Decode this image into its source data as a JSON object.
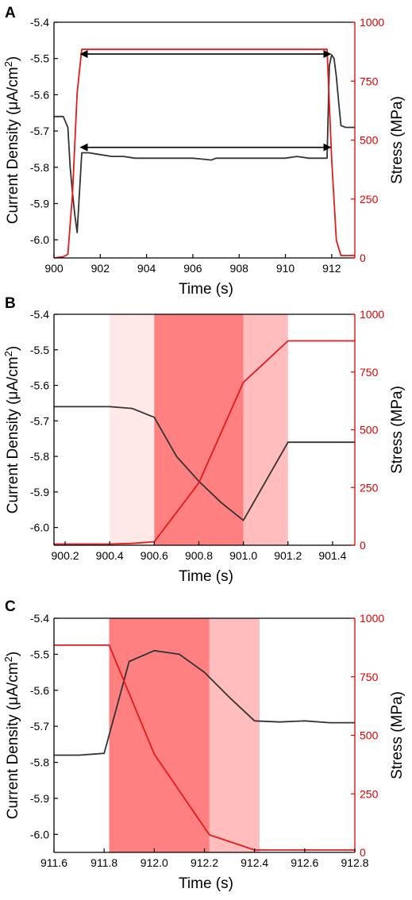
{
  "colors": {
    "current": "#333333",
    "stress": "#e8191a",
    "right_axis": "#e00000",
    "shade_light": "#ffe8e8",
    "shade_dark": "#ff8080",
    "shade_mid": "#ffbdbd"
  },
  "chart_data": [
    {
      "panel": "A",
      "type": "line",
      "xlabel": "Time (s)",
      "ylabel_left": "Current Density (μA/cm²)",
      "ylabel_right": "Stress (MPa)",
      "xlim": [
        900,
        913
      ],
      "ylim_left": [
        -6.05,
        -5.4
      ],
      "ylim_right": [
        0,
        1000
      ],
      "xticks": [
        900,
        902,
        904,
        906,
        908,
        910,
        912
      ],
      "xtick_labels": [
        "900",
        "902",
        "904",
        "906",
        "908",
        "910",
        "912"
      ],
      "yticks_left": [
        -6.0,
        -5.9,
        -5.8,
        -5.7,
        -5.6,
        -5.5,
        -5.4
      ],
      "ytick_labels_left": [
        "-6.0",
        "-5.9",
        "-5.8",
        "-5.7",
        "-5.6",
        "-5.5",
        "-5.4"
      ],
      "yticks_right": [
        0,
        250,
        500,
        750,
        1000
      ],
      "ytick_labels_right": [
        "0",
        "250",
        "500",
        "750",
        "1000"
      ],
      "series": [
        {
          "axis": "left",
          "color": "#333333",
          "x": [
            900,
            900.4,
            900.6,
            900.7,
            900.8,
            900.9,
            901.0,
            901.1,
            901.2,
            901.5,
            902.0,
            902.5,
            903.0,
            903.5,
            904.0,
            905.0,
            906.0,
            906.8,
            907.0,
            908.0,
            909.0,
            910.0,
            910.5,
            911.0,
            911.5,
            911.8,
            911.9,
            912.0,
            912.1,
            912.2,
            912.3,
            912.4,
            912.6,
            912.8,
            913.0
          ],
          "y": [
            -5.66,
            -5.66,
            -5.69,
            -5.8,
            -5.87,
            -5.93,
            -5.98,
            -5.87,
            -5.76,
            -5.76,
            -5.765,
            -5.77,
            -5.77,
            -5.775,
            -5.775,
            -5.775,
            -5.775,
            -5.78,
            -5.775,
            -5.775,
            -5.775,
            -5.775,
            -5.77,
            -5.775,
            -5.775,
            -5.775,
            -5.52,
            -5.49,
            -5.5,
            -5.55,
            -5.62,
            -5.685,
            -5.69,
            -5.69,
            -5.69
          ]
        },
        {
          "axis": "right",
          "color": "#e8191a",
          "x": [
            900,
            900.4,
            900.6,
            900.8,
            901.0,
            901.2,
            911.8,
            912.0,
            912.2,
            912.4,
            913.0
          ],
          "y": [
            0,
            5,
            15,
            270,
            700,
            885,
            885,
            420,
            75,
            10,
            10
          ]
        }
      ],
      "annotations": [
        {
          "type": "double-arrow",
          "axis": "right",
          "x0": 901.15,
          "x1": 911.95,
          "y": 865
        },
        {
          "type": "double-arrow",
          "axis": "left",
          "x0": 901.15,
          "x1": 911.95,
          "y": -5.745
        }
      ]
    },
    {
      "panel": "B",
      "type": "line",
      "xlabel": "Time (s)",
      "ylabel_left": "Current Density (μA/cm²)",
      "ylabel_right": "Stress (MPa)",
      "xlim": [
        900.15,
        901.5
      ],
      "ylim_left": [
        -6.05,
        -5.4
      ],
      "ylim_right": [
        0,
        1000
      ],
      "xticks": [
        900.2,
        900.4,
        900.6,
        900.8,
        901.0,
        901.2,
        901.4
      ],
      "xtick_labels": [
        "900.2",
        "900.4",
        "900.6",
        "900.8",
        "901.0",
        "901.2",
        "901.4"
      ],
      "yticks_left": [
        -6.0,
        -5.9,
        -5.8,
        -5.7,
        -5.6,
        -5.5,
        -5.4
      ],
      "ytick_labels_left": [
        "-6.0",
        "-5.9",
        "-5.8",
        "-5.7",
        "-5.6",
        "-5.5",
        "-5.4"
      ],
      "yticks_right": [
        0,
        250,
        500,
        750,
        1000
      ],
      "ytick_labels_right": [
        "0",
        "250",
        "500",
        "750",
        "1000"
      ],
      "shaded_regions": [
        {
          "x0": 900.4,
          "x1": 900.6,
          "color": "#ffe8e8"
        },
        {
          "x0": 900.6,
          "x1": 901.0,
          "color": "#ff8080"
        },
        {
          "x0": 901.0,
          "x1": 901.2,
          "color": "#ffbdbd"
        }
      ],
      "series": [
        {
          "axis": "left",
          "color": "#333333",
          "x": [
            900.15,
            900.4,
            900.5,
            900.6,
            900.7,
            900.8,
            900.9,
            901.0,
            901.1,
            901.2,
            901.5
          ],
          "y": [
            -5.66,
            -5.66,
            -5.665,
            -5.69,
            -5.8,
            -5.87,
            -5.93,
            -5.98,
            -5.87,
            -5.76,
            -5.76
          ]
        },
        {
          "axis": "right",
          "color": "#e8191a",
          "x": [
            900.15,
            900.4,
            900.5,
            900.6,
            900.8,
            901.0,
            901.1,
            901.2,
            901.5
          ],
          "y": [
            5,
            5,
            8,
            15,
            270,
            705,
            795,
            885,
            885
          ]
        }
      ]
    },
    {
      "panel": "C",
      "type": "line",
      "xlabel": "Time (s)",
      "ylabel_left": "Current Density (μA/cm²)",
      "ylabel_right": "Stress (MPa)",
      "xlim": [
        911.6,
        912.8
      ],
      "ylim_left": [
        -6.05,
        -5.4
      ],
      "ylim_right": [
        0,
        1000
      ],
      "xticks": [
        911.6,
        911.8,
        912.0,
        912.2,
        912.4,
        912.6,
        912.8
      ],
      "xtick_labels": [
        "911.6",
        "911.8",
        "912.0",
        "912.2",
        "912.4",
        "912.6",
        "912.8"
      ],
      "yticks_left": [
        -6.0,
        -5.9,
        -5.8,
        -5.7,
        -5.6,
        -5.5,
        -5.4
      ],
      "ytick_labels_left": [
        "-6.0",
        "-5.9",
        "-5.8",
        "-5.7",
        "-5.6",
        "-5.5",
        "-5.4"
      ],
      "yticks_right": [
        0,
        250,
        500,
        750,
        1000
      ],
      "ytick_labels_right": [
        "0",
        "250",
        "500",
        "750",
        "1000"
      ],
      "shaded_regions": [
        {
          "x0": 911.82,
          "x1": 912.22,
          "color": "#ff8080"
        },
        {
          "x0": 912.22,
          "x1": 912.42,
          "color": "#ffbdbd"
        }
      ],
      "series": [
        {
          "axis": "left",
          "color": "#333333",
          "x": [
            911.6,
            911.7,
            911.8,
            911.9,
            912.0,
            912.1,
            912.2,
            912.3,
            912.4,
            912.5,
            912.6,
            912.7,
            912.8
          ],
          "y": [
            -5.78,
            -5.78,
            -5.775,
            -5.52,
            -5.49,
            -5.5,
            -5.55,
            -5.62,
            -5.685,
            -5.688,
            -5.685,
            -5.69,
            -5.69
          ]
        },
        {
          "axis": "right",
          "color": "#e8191a",
          "x": [
            911.6,
            911.82,
            912.0,
            912.22,
            912.4,
            912.8
          ],
          "y": [
            885,
            885,
            420,
            75,
            10,
            10
          ]
        }
      ]
    }
  ]
}
